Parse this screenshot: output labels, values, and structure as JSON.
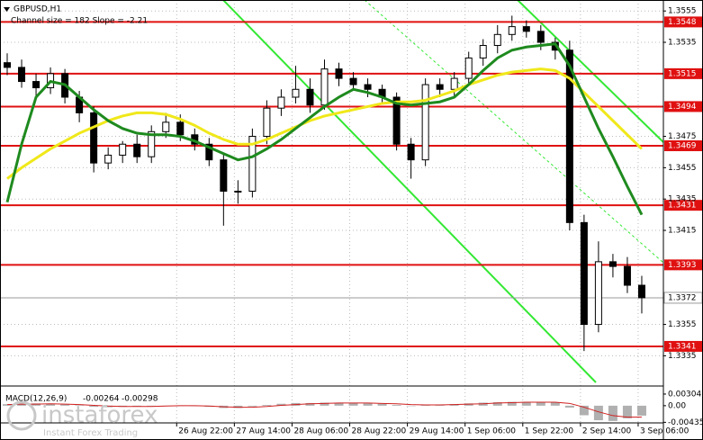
{
  "chart_data": {
    "type": "candlestick",
    "title": "GBPUSD,H1",
    "subtitle": "Channel size = 182 Slope = -2.21",
    "ylim": [
      1.3318,
      1.3562
    ],
    "yticks": [
      1.3555,
      1.3535,
      1.3475,
      1.3455,
      1.3435,
      1.3415,
      1.3355,
      1.3335
    ],
    "xlim": [
      0,
      46
    ],
    "xticks": [
      {
        "value": 12.25,
        "label": "26 Aug 22:00"
      },
      {
        "value": 16.25,
        "label": "27 Aug 14:00"
      },
      {
        "value": 20.25,
        "label": "28 Aug 06:00"
      },
      {
        "value": 24.25,
        "label": "28 Aug 22:00"
      },
      {
        "value": 28.25,
        "label": "29 Aug 14:00"
      },
      {
        "value": 32.25,
        "label": "1 Sep 06:00"
      },
      {
        "value": 36.25,
        "label": "1 Sep 22:00"
      },
      {
        "value": 40.25,
        "label": "2 Sep 14:00"
      },
      {
        "value": 44.25,
        "label": "3 Sep 06:00"
      }
    ],
    "grid": true,
    "open": [
      1.3522,
      1.3519,
      1.351,
      1.3506,
      1.3515,
      1.35,
      1.349,
      1.3458,
      1.3463,
      1.347,
      1.3462,
      1.3478,
      1.3484,
      1.3476,
      1.347,
      1.346,
      1.344,
      1.344,
      1.3475,
      1.3493,
      1.35,
      1.3505,
      1.3495,
      1.3518,
      1.3512,
      1.3508,
      1.3505,
      1.35,
      1.347,
      1.346,
      1.3508,
      1.3505,
      1.3512,
      1.3525,
      1.3533,
      1.354,
      1.3545,
      1.3542,
      1.3535,
      1.353,
      1.342,
      1.3355,
      1.3395,
      1.3392,
      1.338
    ],
    "high": [
      1.3528,
      1.3524,
      1.3515,
      1.3519,
      1.3518,
      1.3504,
      1.3494,
      1.3468,
      1.3472,
      1.3476,
      1.3482,
      1.349,
      1.3489,
      1.348,
      1.3474,
      1.3464,
      1.3447,
      1.348,
      1.3498,
      1.3505,
      1.352,
      1.3512,
      1.3524,
      1.3522,
      1.3516,
      1.3512,
      1.3508,
      1.3503,
      1.3474,
      1.3512,
      1.3512,
      1.3516,
      1.3529,
      1.3537,
      1.3546,
      1.3552,
      1.3549,
      1.3546,
      1.3538,
      1.3536,
      1.3425,
      1.3408,
      1.34,
      1.3398,
      1.3386
    ],
    "low": [
      1.3514,
      1.3506,
      1.35,
      1.3502,
      1.3496,
      1.3484,
      1.3452,
      1.3454,
      1.3458,
      1.3458,
      1.3458,
      1.3474,
      1.3472,
      1.3466,
      1.3456,
      1.3418,
      1.3432,
      1.3436,
      1.347,
      1.3488,
      1.3496,
      1.349,
      1.3492,
      1.3507,
      1.3504,
      1.35,
      1.3496,
      1.3466,
      1.3448,
      1.3456,
      1.35,
      1.35,
      1.3508,
      1.352,
      1.3528,
      1.3536,
      1.3538,
      1.353,
      1.3524,
      1.3415,
      1.3338,
      1.335,
      1.3385,
      1.3375,
      1.3362
    ],
    "close": [
      1.3519,
      1.351,
      1.3506,
      1.3515,
      1.35,
      1.349,
      1.3458,
      1.3463,
      1.347,
      1.3462,
      1.3478,
      1.3484,
      1.3476,
      1.347,
      1.346,
      1.344,
      1.344,
      1.3475,
      1.3493,
      1.35,
      1.3505,
      1.3495,
      1.3518,
      1.3512,
      1.3508,
      1.3505,
      1.35,
      1.347,
      1.346,
      1.3508,
      1.3505,
      1.3512,
      1.3525,
      1.3533,
      1.354,
      1.3545,
      1.3542,
      1.3535,
      1.353,
      1.342,
      1.3355,
      1.3395,
      1.3392,
      1.338,
      1.3372
    ],
    "moving_averages": [
      {
        "color": "#f0e81a",
        "values": [
          1.3448,
          1.3455,
          1.3461,
          1.3467,
          1.3472,
          1.3477,
          1.3481,
          1.3485,
          1.3488,
          1.349,
          1.349,
          1.3489,
          1.3486,
          1.3482,
          1.3477,
          1.3473,
          1.347,
          1.347,
          1.3473,
          1.3477,
          1.3481,
          1.3485,
          1.3488,
          1.349,
          1.3492,
          1.3494,
          1.3496,
          1.3497,
          1.3497,
          1.3498,
          1.3501,
          1.3504,
          1.3508,
          1.3511,
          1.3514,
          1.3516,
          1.3517,
          1.3518,
          1.3517,
          1.3512,
          1.3503,
          1.3494,
          1.3485,
          1.3476,
          1.3467
        ]
      },
      {
        "color": "#1e8a1e",
        "values": [
          1.3433,
          1.347,
          1.35,
          1.351,
          1.3508,
          1.35,
          1.3492,
          1.3485,
          1.348,
          1.3477,
          1.3476,
          1.3476,
          1.3475,
          1.3472,
          1.3468,
          1.3464,
          1.346,
          1.3462,
          1.3467,
          1.3473,
          1.348,
          1.3487,
          1.3494,
          1.35,
          1.3505,
          1.3503,
          1.35,
          1.3496,
          1.3495,
          1.3496,
          1.3497,
          1.35,
          1.3508,
          1.3517,
          1.3525,
          1.353,
          1.3532,
          1.3533,
          1.3534,
          1.352,
          1.35,
          1.348,
          1.3462,
          1.3443,
          1.3425
        ]
      }
    ],
    "levels": [
      1.3548,
      1.3515,
      1.3494,
      1.3469,
      1.3431,
      1.3393,
      1.3341
    ],
    "level_color": "#e01010",
    "current_price": 1.3372,
    "macd": {
      "label": "MACD(12,26,9)",
      "main": -0.00264,
      "signal": -0.00298,
      "ylim": [
        -0.0045,
        0.0035
      ],
      "yticks": [
        0.00304,
        {
          "value": 0,
          "label": "0.00"
        },
        -0.00435
      ],
      "histogram": [
        0.0004,
        0.0005,
        0.0006,
        0.0005,
        0.0003,
        0.0001,
        -0.0003,
        -0.0004,
        -0.0003,
        -0.0002,
        -0.0001,
        0.0,
        0.0001,
        0.0,
        -0.0003,
        -0.0006,
        -0.0006,
        -0.0002,
        0.0002,
        0.0005,
        0.0007,
        0.0007,
        0.0008,
        0.0008,
        0.0007,
        0.0006,
        0.0005,
        0.0002,
        0.0,
        0.0002,
        0.0003,
        0.0004,
        0.0006,
        0.0008,
        0.0009,
        0.001,
        0.001,
        0.0009,
        0.0008,
        -0.0005,
        -0.0025,
        -0.0038,
        -0.004,
        -0.0033,
        -0.0026
      ],
      "signal_line": [
        0.0003,
        0.0004,
        0.0004,
        0.0005,
        0.0004,
        0.0003,
        0.0001,
        -0.0001,
        -0.0002,
        -0.0002,
        -0.0002,
        -0.0001,
        0.0,
        0.0,
        -0.0001,
        -0.0003,
        -0.0004,
        -0.0004,
        -0.0002,
        0.0001,
        0.0003,
        0.0005,
        0.0006,
        0.0007,
        0.0007,
        0.0007,
        0.0006,
        0.0005,
        0.0003,
        0.0002,
        0.0002,
        0.0003,
        0.0004,
        0.0005,
        0.0007,
        0.0008,
        0.0009,
        0.0009,
        0.0009,
        0.0006,
        -0.0004,
        -0.0016,
        -0.0026,
        -0.003,
        -0.00298
      ]
    },
    "watermark": {
      "brand": "instaforex",
      "tagline": "Instant Forex Trading"
    }
  }
}
